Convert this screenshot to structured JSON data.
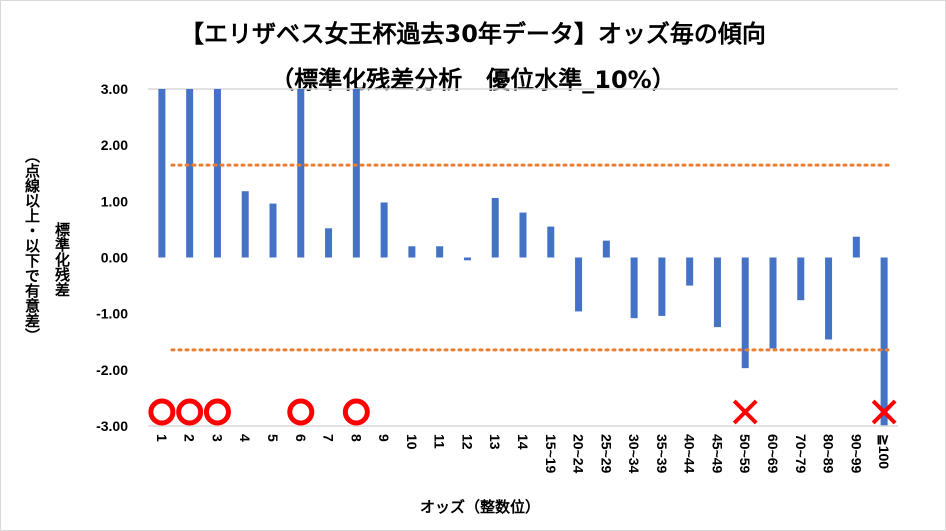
{
  "chart_data": {
    "type": "bar",
    "title": "【エリザベス女王杯過去30年データ】オッズ毎の傾向",
    "subtitle": "（標準化残差分析　優位水準_10%）",
    "xlabel": "オッズ（整数位）",
    "ylabel": "標準化残差",
    "ylabel_note": "（点線以上・以下で有意差）",
    "ylim": [
      -3,
      3
    ],
    "yticks": [
      "3.00",
      "2.00",
      "1.00",
      "0.00",
      "-1.00",
      "-2.00",
      "-3.00"
    ],
    "ytick_values": [
      3,
      2,
      1,
      0,
      -1,
      -2,
      -3
    ],
    "categories": [
      "1",
      "2",
      "3",
      "4",
      "5",
      "6",
      "7",
      "8",
      "9",
      "10",
      "11",
      "12",
      "13",
      "14",
      "15~19",
      "20~24",
      "25~29",
      "30~34",
      "35~39",
      "40~44",
      "45~49",
      "50~59",
      "60~69",
      "70~79",
      "80~89",
      "90~99",
      "≧100"
    ],
    "values": [
      3.0,
      3.0,
      3.0,
      1.18,
      0.96,
      3.0,
      0.52,
      3.0,
      0.98,
      0.2,
      0.2,
      -0.05,
      1.06,
      0.8,
      0.55,
      -0.96,
      0.3,
      -1.08,
      -1.04,
      -0.5,
      -1.24,
      -1.97,
      -1.62,
      -0.76,
      -1.46,
      0.37,
      -3.0
    ],
    "threshold_lines": [
      1.645,
      -1.645
    ],
    "markers": {
      "circle": [
        "1",
        "2",
        "3",
        "6",
        "8"
      ],
      "cross": [
        "50~59",
        "≧100"
      ]
    },
    "colors": {
      "bar": "#4472C4",
      "threshold": "#ED7D31",
      "circle": "#FF0000",
      "cross": "#FF0000"
    },
    "grid": false
  }
}
